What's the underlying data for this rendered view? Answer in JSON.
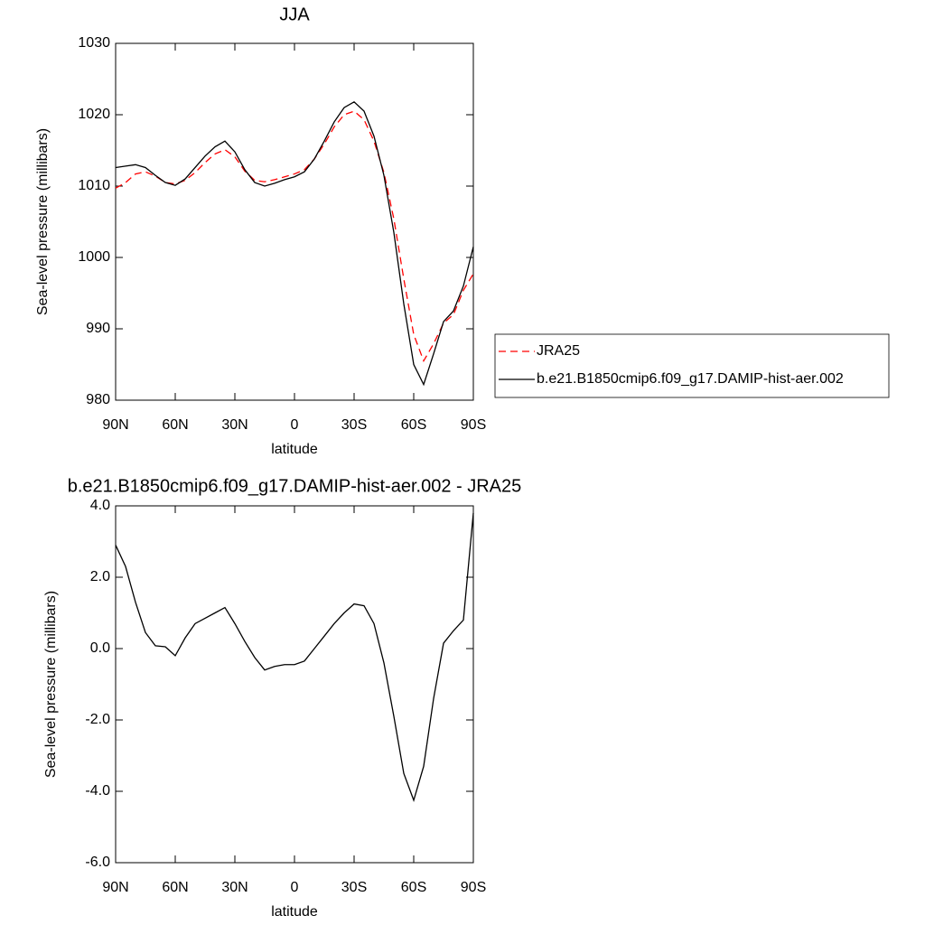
{
  "chart_data": [
    {
      "type": "line",
      "title": "JJA",
      "xlabel": "latitude",
      "ylabel": "Sea-level pressure (millibars)",
      "x": [
        90,
        85,
        80,
        75,
        70,
        65,
        60,
        55,
        50,
        45,
        40,
        35,
        30,
        25,
        20,
        15,
        10,
        5,
        0,
        -5,
        -10,
        -15,
        -20,
        -25,
        -30,
        -35,
        -40,
        -45,
        -50,
        -55,
        -60,
        -65,
        -70,
        -75,
        -80,
        -85,
        -90
      ],
      "xlim": [
        90,
        -90
      ],
      "xticks": [
        {
          "value": 90,
          "label": "90N"
        },
        {
          "value": 60,
          "label": "60N"
        },
        {
          "value": 30,
          "label": "30N"
        },
        0,
        {
          "value": -30,
          "label": "30S"
        },
        {
          "value": -60,
          "label": "60S"
        },
        {
          "value": -90,
          "label": "90S"
        }
      ],
      "ylim": [
        980,
        1030
      ],
      "yticks": [
        980,
        990,
        1000,
        1010,
        1020,
        1030
      ],
      "legend": "right",
      "series": [
        {
          "name": "JRA25",
          "color": "#ff0000",
          "style": "dashed",
          "values": [
            1009.7,
            1010.5,
            1011.7,
            1012.0,
            1011.4,
            1010.5,
            1010.3,
            1010.8,
            1011.9,
            1013.3,
            1014.5,
            1015.1,
            1014.1,
            1012.1,
            1010.8,
            1010.6,
            1010.9,
            1011.3,
            1011.7,
            1012.3,
            1013.8,
            1015.9,
            1018.3,
            1020.0,
            1020.5,
            1019.3,
            1016.3,
            1011.9,
            1005.4,
            997.0,
            989.2,
            985.5,
            987.9,
            990.8,
            992.0,
            995.4,
            997.7
          ]
        },
        {
          "name": "b.e21.B1850cmip6.f09_g17.DAMIP-hist-aer.002",
          "color": "#000000",
          "style": "solid",
          "values": [
            1012.6,
            1012.8,
            1013.0,
            1012.6,
            1011.5,
            1010.5,
            1010.1,
            1011.0,
            1012.6,
            1014.2,
            1015.5,
            1016.3,
            1014.8,
            1012.3,
            1010.5,
            1010.0,
            1010.4,
            1010.9,
            1011.3,
            1012.0,
            1013.8,
            1016.3,
            1019.0,
            1021.0,
            1021.8,
            1020.5,
            1017.0,
            1011.5,
            1003.5,
            993.5,
            985.0,
            982.2,
            986.5,
            991.0,
            992.5,
            996.0,
            1001.5
          ]
        }
      ]
    },
    {
      "type": "line",
      "title": "b.e21.B1850cmip6.f09_g17.DAMIP-hist-aer.002 - JRA25",
      "xlabel": "latitude",
      "ylabel": "Sea-level pressure (millibars)",
      "x": [
        90,
        85,
        80,
        75,
        70,
        65,
        60,
        55,
        50,
        45,
        40,
        35,
        30,
        25,
        20,
        15,
        10,
        5,
        0,
        -5,
        -10,
        -15,
        -20,
        -25,
        -30,
        -35,
        -40,
        -45,
        -50,
        -55,
        -60,
        -65,
        -70,
        -75,
        -80,
        -85,
        -90
      ],
      "xlim": [
        90,
        -90
      ],
      "xticks": [
        {
          "value": 90,
          "label": "90N"
        },
        {
          "value": 60,
          "label": "60N"
        },
        {
          "value": 30,
          "label": "30N"
        },
        0,
        {
          "value": -30,
          "label": "30S"
        },
        {
          "value": -60,
          "label": "60S"
        },
        {
          "value": -90,
          "label": "90S"
        }
      ],
      "ylim": [
        -6,
        4
      ],
      "yticks": [
        {
          "value": -6,
          "label": "-6.0"
        },
        {
          "value": -4,
          "label": "-4.0"
        },
        {
          "value": -2,
          "label": "-2.0"
        },
        {
          "value": 0,
          "label": "0.0"
        },
        {
          "value": 2,
          "label": "2.0"
        },
        {
          "value": 4,
          "label": "4.0"
        }
      ],
      "series": [
        {
          "color": "#000000",
          "style": "solid",
          "values": [
            2.9,
            2.3,
            1.3,
            0.45,
            0.08,
            0.05,
            -0.2,
            0.3,
            0.7,
            0.85,
            1.0,
            1.15,
            0.7,
            0.2,
            -0.25,
            -0.6,
            -0.5,
            -0.45,
            -0.45,
            -0.35,
            0.0,
            0.35,
            0.7,
            1.0,
            1.25,
            1.2,
            0.7,
            -0.4,
            -1.9,
            -3.5,
            -4.25,
            -3.3,
            -1.4,
            0.15,
            0.5,
            0.8,
            3.8
          ]
        }
      ]
    }
  ]
}
